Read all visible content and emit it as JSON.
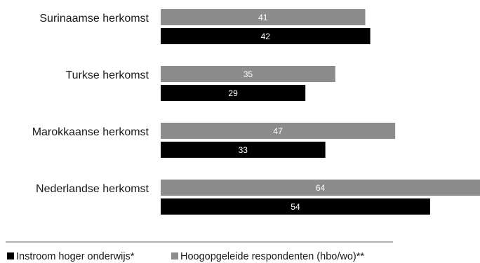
{
  "chart_data": {
    "type": "bar",
    "orientation": "horizontal",
    "categories": [
      "Surinaamse herkomst",
      "Turkse herkomst",
      "Marokkaanse herkomst",
      "Nederlandse herkomst"
    ],
    "series": [
      {
        "name": "Hoogopgeleide respondenten (hbo/wo)**",
        "color": "#8c8c8c",
        "values": [
          41,
          35,
          47,
          64
        ]
      },
      {
        "name": "Instroom hoger onderwijs*",
        "color": "#000000",
        "values": [
          42,
          29,
          33,
          54
        ]
      }
    ],
    "xlim": [
      0,
      64
    ],
    "grid": false,
    "data_labels": true,
    "legend": {
      "position": "bottom-left",
      "order": [
        "Instroom hoger onderwijs*",
        "Hoogopgeleide respondenten (hbo/wo)**"
      ]
    },
    "title": "",
    "xlabel": "",
    "ylabel": ""
  }
}
